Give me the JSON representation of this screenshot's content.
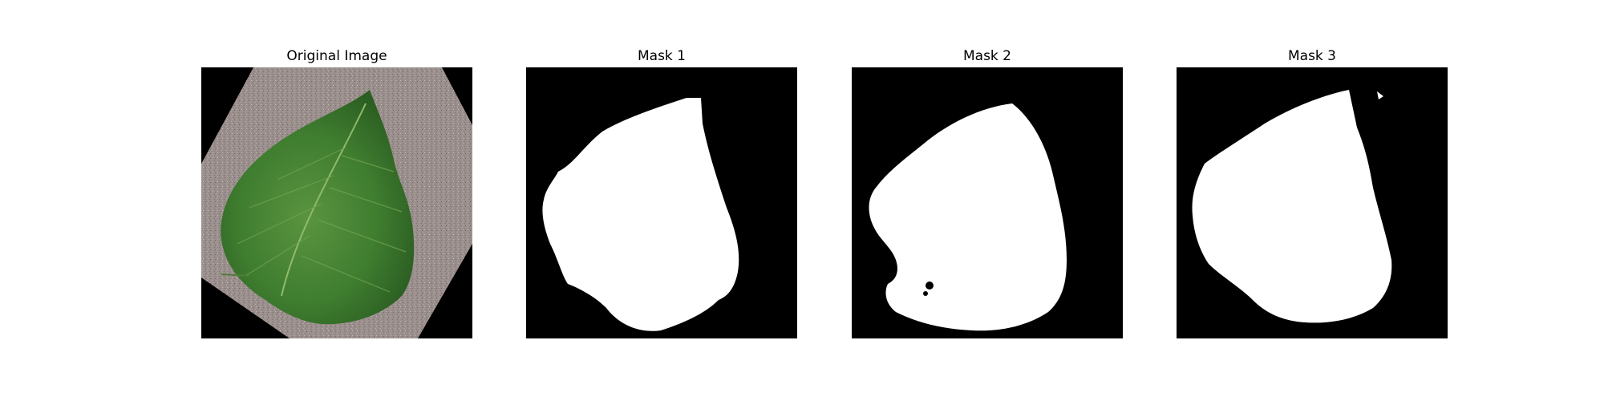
{
  "figure": {
    "panels": [
      {
        "title": "Original Image",
        "kind": "photo"
      },
      {
        "title": "Mask 1",
        "kind": "mask"
      },
      {
        "title": "Mask 2",
        "kind": "mask"
      },
      {
        "title": "Mask 3",
        "kind": "mask"
      }
    ]
  },
  "colors": {
    "background": "#ffffff",
    "mask_background": "#000000",
    "mask_foreground": "#ffffff",
    "leaf": "#3e7a2e",
    "fabric": "#9a8f8c"
  }
}
